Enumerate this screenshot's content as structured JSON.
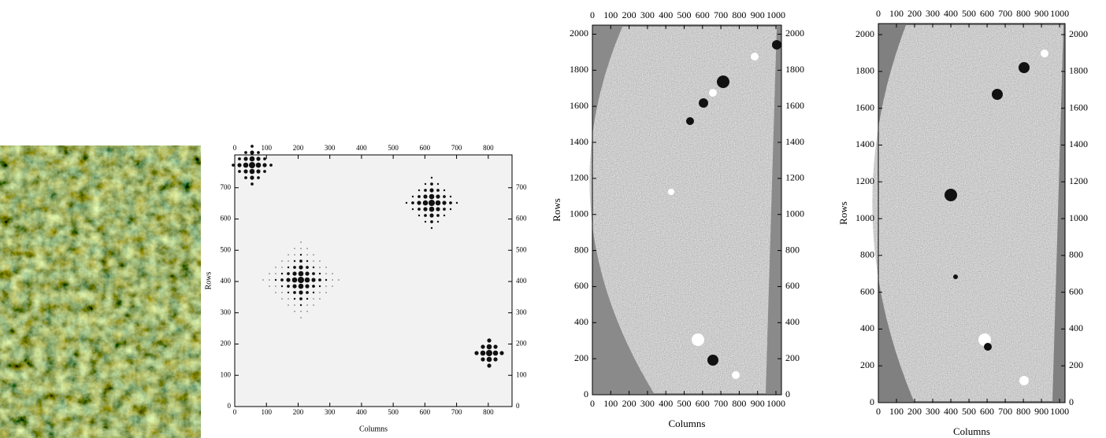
{
  "chart_data": [
    {
      "type": "image",
      "xlabel": "Columns",
      "ylabel": "Rows",
      "xlim": [
        0,
        875
      ],
      "ylim": [
        0,
        805
      ],
      "xticks": [
        0,
        100,
        200,
        300,
        400,
        500,
        600,
        700,
        800
      ],
      "yticks": [
        0,
        100,
        200,
        300,
        400,
        500,
        600,
        700
      ]
    },
    {
      "type": "image",
      "xlabel": "Columns",
      "ylabel": "Rows",
      "xlim": [
        0,
        1030
      ],
      "ylim": [
        0,
        2050
      ],
      "xticks": [
        0,
        100,
        200,
        300,
        400,
        500,
        600,
        700,
        800,
        900,
        1000
      ],
      "yticks": [
        0,
        200,
        400,
        600,
        800,
        1000,
        1200,
        1400,
        1600,
        1800,
        2000
      ]
    },
    {
      "type": "image",
      "xlabel": "Columns",
      "ylabel": "Rows",
      "xlim": [
        0,
        1030
      ],
      "ylim": [
        0,
        2060
      ],
      "xticks": [
        0,
        100,
        200,
        300,
        400,
        500,
        600,
        700,
        800,
        900,
        1000
      ],
      "yticks": [
        0,
        200,
        400,
        600,
        800,
        1000,
        1200,
        1400,
        1600,
        1800,
        2000
      ]
    }
  ]
}
